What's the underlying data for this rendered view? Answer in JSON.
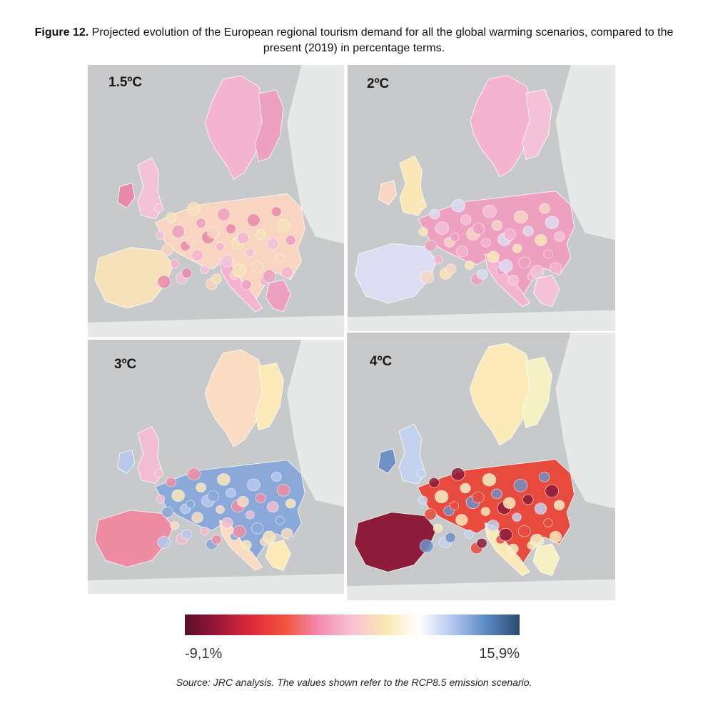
{
  "caption": {
    "figure_label": "Figure 12.",
    "text": "Projected evolution of the European regional tourism demand for all the global warming scenarios, compared to the present (2019) in percentage terms."
  },
  "panels": [
    {
      "label": "1.5ºC",
      "palette": [
        "#f4b3cf",
        "#eea0c0",
        "#f3c2d8",
        "#e98aa8",
        "#f9d4c0",
        "#f7e1b8"
      ]
    },
    {
      "label": "2ºC",
      "palette": [
        "#f4b3cf",
        "#f3c2d8",
        "#fbe6b5",
        "#f7d7c4",
        "#eea0c0",
        "#dcdcf2"
      ]
    },
    {
      "label": "3ºC",
      "palette": [
        "#f9dcc2",
        "#fbe9b8",
        "#f2bcd2",
        "#b7c8ec",
        "#8aa8d8",
        "#ee8ca3"
      ]
    },
    {
      "label": "4ºC",
      "palette": [
        "#fbe9b8",
        "#f6f1c4",
        "#c2d2ee",
        "#6f91c6",
        "#e84a3d",
        "#8c1c3a"
      ]
    }
  ],
  "legend": {
    "min_label": "-9,1%",
    "max_label": "15,9%",
    "colors": [
      "#5a0e2a",
      "#9a1838",
      "#e02a3a",
      "#f2543c",
      "#f38bb0",
      "#f8c1d4",
      "#fbe8b2",
      "#ffffff",
      "#b2c6ee",
      "#5b8ac6",
      "#2c4a6e"
    ]
  },
  "source": "Source: JRC analysis. The values shown refer to the RCP8.5 emission scenario."
}
